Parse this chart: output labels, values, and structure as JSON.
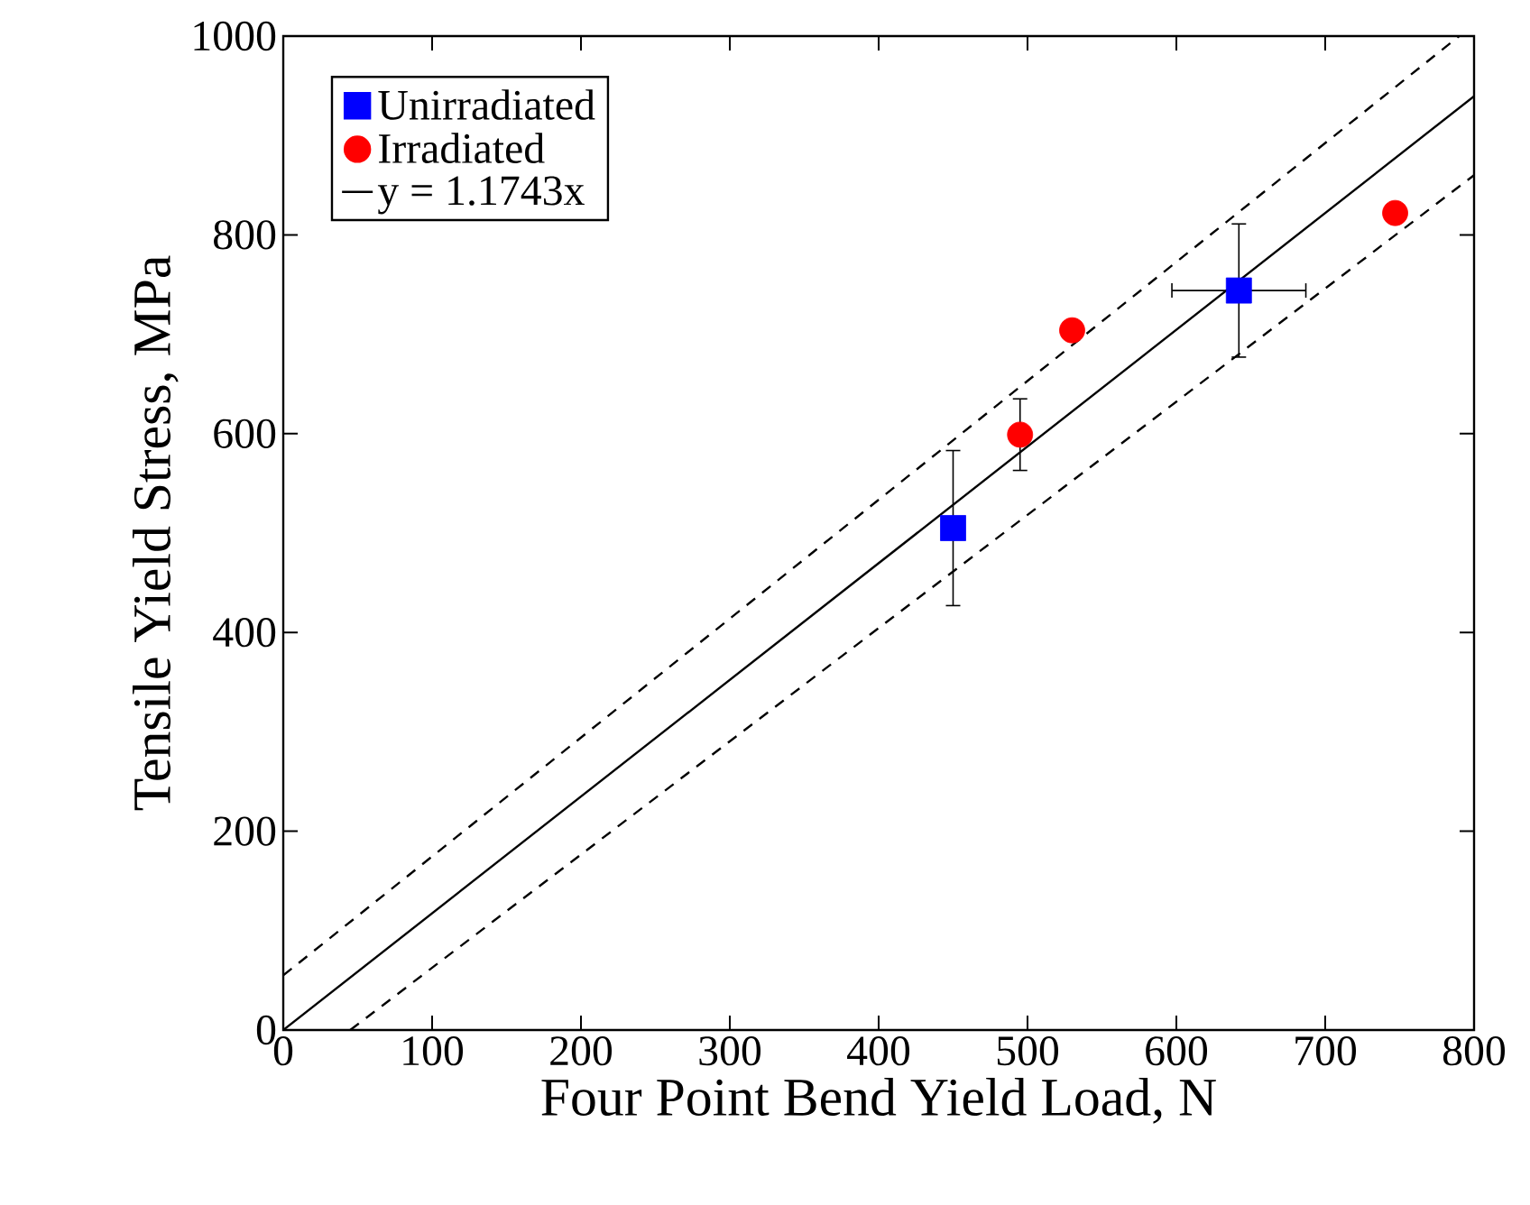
{
  "chart_data": {
    "type": "scatter",
    "xlabel": "Four Point Bend Yield Load, N",
    "ylabel": "Tensile Yield Stress, MPa",
    "xlim": [
      0,
      800
    ],
    "ylim": [
      0,
      1000
    ],
    "xticks": [
      0,
      100,
      200,
      300,
      400,
      500,
      600,
      700,
      800
    ],
    "yticks": [
      0,
      200,
      400,
      600,
      800,
      1000
    ],
    "grid": false,
    "legend": "top left",
    "series": [
      {
        "name": "Unirradiated",
        "color": "#0000ff",
        "marker": "square",
        "x": [
          450,
          642
        ],
        "values": [
          505,
          744
        ],
        "errors": [
          78,
          67
        ],
        "xerrors": [
          null,
          45
        ]
      },
      {
        "name": "Irradiated",
        "color": "#ff0000",
        "marker": "circle",
        "x": [
          495,
          530,
          747
        ],
        "values": [
          599,
          704,
          822
        ],
        "errors": [
          36,
          null,
          null
        ]
      },
      {
        "name": "y = 1.1743x",
        "type": "line",
        "color": "#000000",
        "line_style": "solid",
        "marker": "none",
        "x": [
          0,
          800
        ],
        "values": [
          0,
          939.4
        ]
      },
      {
        "type": "line",
        "color": "#000000",
        "line_style": "dashed",
        "marker": "none",
        "x": [
          0,
          790
        ],
        "values": [
          55,
          1000
        ]
      },
      {
        "type": "line",
        "color": "#000000",
        "line_style": "dashed",
        "marker": "none",
        "x": [
          45,
          800
        ],
        "values": [
          0,
          860
        ]
      }
    ]
  }
}
